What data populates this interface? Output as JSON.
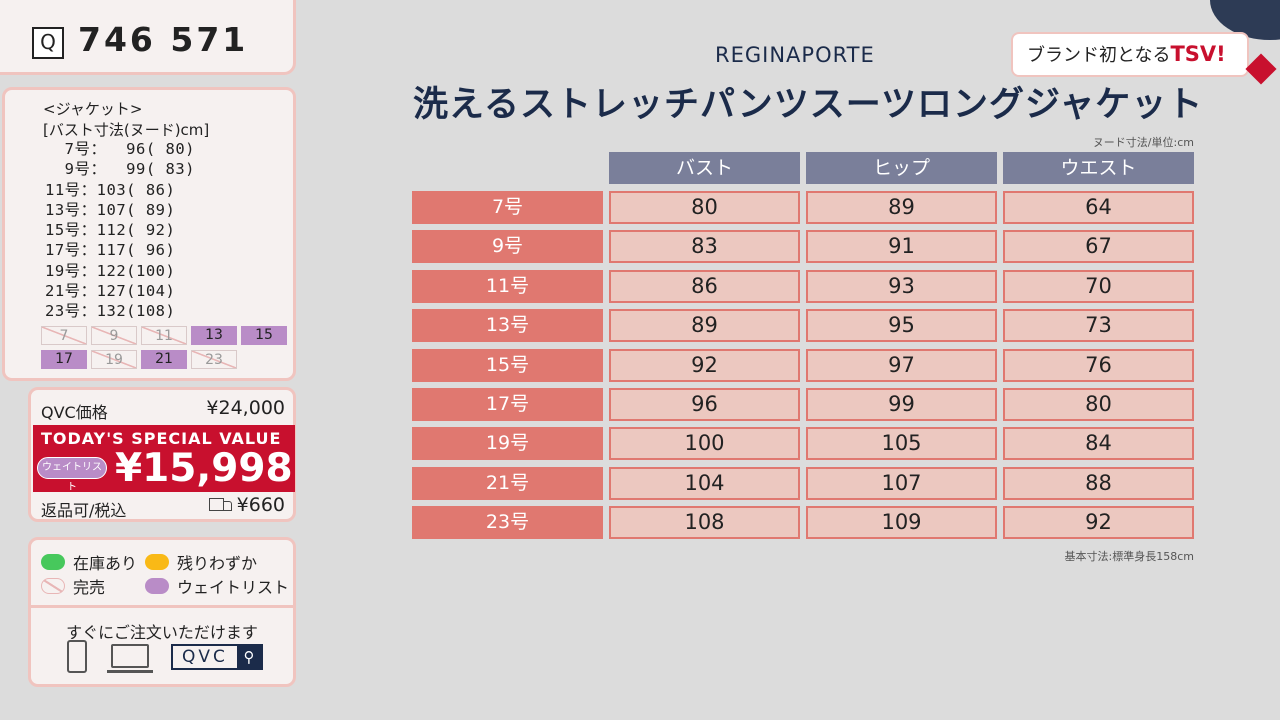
{
  "item": {
    "search_icon_glyph": "Q",
    "number": "746 571"
  },
  "sizes": {
    "title": "<ジャケット>",
    "header": "[バスト寸法(ヌード)cm]",
    "rows": [
      "  7号：  96( 80)",
      "  9号：  99( 83)",
      "11号：103( 86)",
      "13号：107( 89)",
      "15号：112( 92)",
      "17号：117( 96)",
      "19号：122(100)",
      "21号：127(104)",
      "23号：132(108)"
    ],
    "chips": [
      {
        "label": "7",
        "status": "sold"
      },
      {
        "label": "9",
        "status": "sold"
      },
      {
        "label": "11",
        "status": "sold"
      },
      {
        "label": "13",
        "status": "wait"
      },
      {
        "label": "15",
        "status": "wait"
      },
      {
        "label": "17",
        "status": "wait"
      },
      {
        "label": "19",
        "status": "sold"
      },
      {
        "label": "21",
        "status": "wait"
      },
      {
        "label": "23",
        "status": "sold"
      }
    ]
  },
  "price": {
    "qvc_label": "QVC価格",
    "qvc_price": "¥24,000",
    "special_title": "TODAY'S SPECIAL VALUE",
    "waitlist_badge": "ウェイトリスト",
    "special_price": "¥15,998",
    "return_label": "返品可/税込",
    "shipping": "¥660"
  },
  "legend": {
    "in_stock": "在庫あり",
    "few_left": "残りわずか",
    "sold_out": "完売",
    "waitlist": "ウェイトリスト",
    "order_text": "すぐにご注文いただけます",
    "qvc_search": "QVC"
  },
  "main": {
    "tsv_prefix": "ブランド初となる",
    "tsv_bold": "TSV!",
    "brand": "REGINAPORTE",
    "title": "洗えるストレッチパンツスーツロングジャケット",
    "unit_note": "ヌード寸法/単位:cm",
    "basis_note": "基本寸法:標準身長158cm"
  },
  "chart_data": {
    "type": "table",
    "columns": [
      "バスト",
      "ヒップ",
      "ウエスト"
    ],
    "rows": [
      {
        "label": "7号",
        "values": [
          "80",
          "89",
          "64"
        ]
      },
      {
        "label": "9号",
        "values": [
          "83",
          "91",
          "67"
        ]
      },
      {
        "label": "11号",
        "values": [
          "86",
          "93",
          "70"
        ]
      },
      {
        "label": "13号",
        "values": [
          "89",
          "95",
          "73"
        ]
      },
      {
        "label": "15号",
        "values": [
          "92",
          "97",
          "76"
        ]
      },
      {
        "label": "17号",
        "values": [
          "96",
          "99",
          "80"
        ]
      },
      {
        "label": "19号",
        "values": [
          "100",
          "105",
          "84"
        ]
      },
      {
        "label": "21号",
        "values": [
          "104",
          "107",
          "88"
        ]
      },
      {
        "label": "23号",
        "values": [
          "108",
          "109",
          "92"
        ]
      }
    ]
  }
}
